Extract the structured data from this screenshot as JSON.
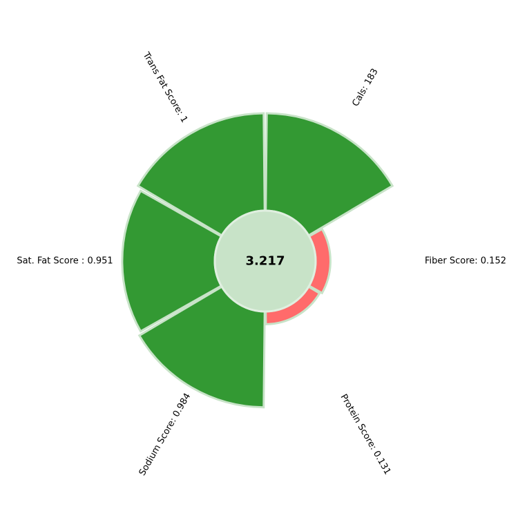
{
  "chart_data": {
    "type": "polar-bar",
    "center_value": "3.217",
    "max_value": 1.0,
    "series": [
      {
        "label": "Cals: 183",
        "value": 1.0,
        "color": "#339933"
      },
      {
        "label": "Fiber Score: 0.152",
        "value": 0.152,
        "color": "#ff6b6b"
      },
      {
        "label": "Protein Score: 0.131",
        "value": 0.131,
        "color": "#ff6b6b"
      },
      {
        "label": "Sodium Score: 0.984",
        "value": 0.984,
        "color": "#339933"
      },
      {
        "label": "Sat. Fat Score : 0.951",
        "value": 0.951,
        "color": "#339933"
      },
      {
        "label": "Trans Fat Score: 1",
        "value": 1.0,
        "color": "#339933"
      }
    ],
    "center_color": "#c8e3c8",
    "edge_color": "#c8e3c8",
    "grid": false,
    "legend": "none"
  }
}
